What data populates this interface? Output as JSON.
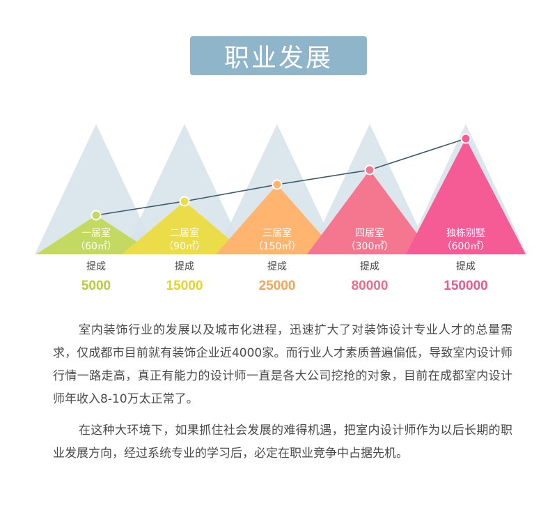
{
  "title": "职业发展",
  "colors": {
    "title_bg": "#8fb5ca",
    "background_peaks": "#d6e3ea",
    "line": "#3a5a6a",
    "tiers": [
      "#c2d860",
      "#ebdd4a",
      "#ffb66f",
      "#f5738c",
      "#f55f93"
    ]
  },
  "tiers": [
    {
      "name": "一居室",
      "area": "（60㎡）",
      "commission_label": "提成",
      "commission": "5000",
      "color": "#b8cc3c",
      "tri_color": "#c4d962",
      "dot_color": "#c4d962"
    },
    {
      "name": "二居室",
      "area": "（90㎡）",
      "commission_label": "提成",
      "commission": "15000",
      "color": "#e6d42a",
      "tri_color": "#ebdd4a",
      "dot_color": "#ebdd4a"
    },
    {
      "name": "三居室",
      "area": "（150㎡）",
      "commission_label": "提成",
      "commission": "25000",
      "color": "#f5a557",
      "tri_color": "#ffb570",
      "dot_color": "#ffb570"
    },
    {
      "name": "四居室",
      "area": "（300㎡）",
      "commission_label": "提成",
      "commission": "80000",
      "color": "#f06c86",
      "tri_color": "#f5778f",
      "dot_color": "#f5778f"
    },
    {
      "name": "独栋别墅",
      "area": "（600㎡）",
      "commission_label": "提成",
      "commission": "150000",
      "color": "#f0588c",
      "tri_color": "#f55c95",
      "dot_color": "#f55c95"
    }
  ],
  "paragraphs": [
    "室内装饰行业的发展以及城市化进程，迅速扩大了对装饰设计专业人才的总量需求，仅成都市目前就有装饰企业近4000家。而行业人才素质普遍偏低，导致室内设计师行情一路走高，真正有能力的设计师一直是各大公司挖抢的对象，目前在成都室内设计师年收入8-10万太正常了。",
    "在这种大环境下，如果抓住社会发展的难得机遇，把室内设计师作为以后长期的职业发展方向，经过系统专业的学习后，必定在职业竞争中占据先机。"
  ]
}
